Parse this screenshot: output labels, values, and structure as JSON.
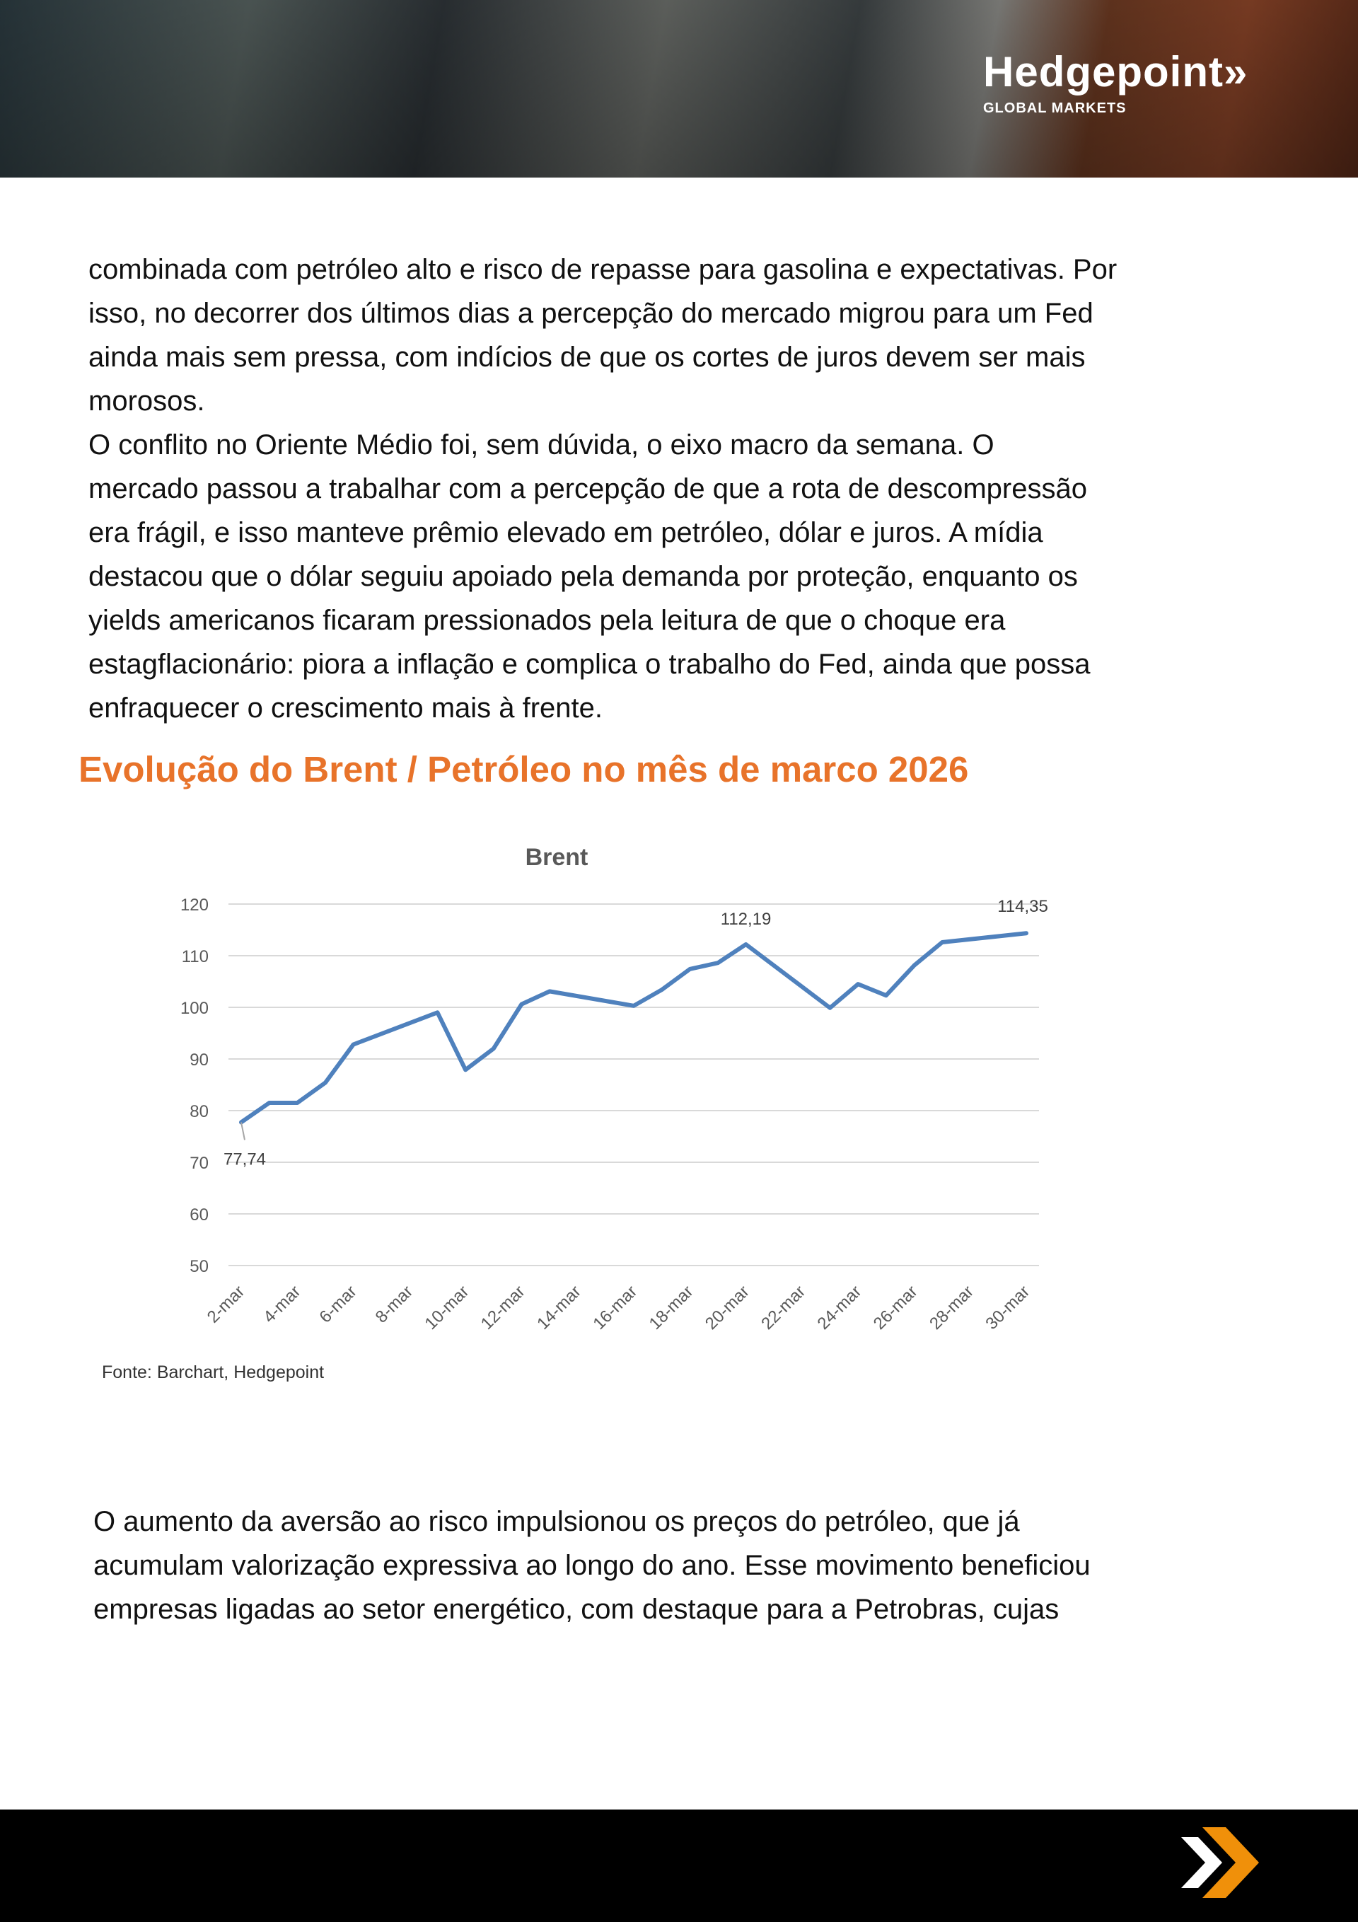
{
  "header": {
    "logo_name": "Hedgepoint»",
    "logo_sub": "GLOBAL MARKETS"
  },
  "paragraph1": [
    "combinada com petróleo alto e risco de repasse para gasolina e expectativas. Por",
    "isso, no decorrer dos últimos dias a percepção do mercado migrou para um Fed",
    "ainda mais sem pressa, com indícios de que os cortes de juros devem ser mais",
    "morosos.",
    "O conflito no Oriente Médio foi, sem dúvida, o eixo macro da semana. O",
    "mercado passou a trabalhar com a percepção de que a rota de descompressão",
    "era frágil, e isso manteve prêmio elevado em petróleo, dólar e juros. A mídia",
    "destacou que o dólar seguiu apoiado pela demanda por proteção, enquanto os",
    "yields americanos ficaram pressionados pela leitura de que o choque era",
    "estagflacionário: piora a inflação e complica o trabalho do Fed, ainda que possa",
    "enfraquecer o crescimento mais à frente."
  ],
  "section_title": "Evolução do Brent / Petróleo no mês de marco 2026",
  "chart_data": {
    "type": "line",
    "title": "Brent",
    "xlabel": "",
    "ylabel": "",
    "ylim": [
      50,
      120
    ],
    "yticks": [
      50,
      60,
      70,
      80,
      90,
      100,
      110,
      120
    ],
    "xlim_day": [
      2,
      30
    ],
    "xtick_labels": [
      "2-mar",
      "4-mar",
      "6-mar",
      "8-mar",
      "10-mar",
      "12-mar",
      "14-mar",
      "16-mar",
      "18-mar",
      "20-mar",
      "22-mar",
      "24-mar",
      "26-mar",
      "28-mar",
      "30-mar"
    ],
    "xtick_days": [
      2,
      4,
      6,
      8,
      10,
      12,
      14,
      16,
      18,
      20,
      22,
      24,
      26,
      28,
      30
    ],
    "grid": true,
    "series": [
      {
        "name": "Brent",
        "color": "#4f81bd",
        "x": [
          2,
          3,
          4,
          5,
          6,
          9,
          10,
          11,
          12,
          13,
          16,
          17,
          18,
          19,
          20,
          23,
          24,
          25,
          26,
          27,
          30
        ],
        "values": [
          77.74,
          81.5,
          81.5,
          85.4,
          92.8,
          99.0,
          87.9,
          92.0,
          100.6,
          103.1,
          100.3,
          103.4,
          107.4,
          108.6,
          112.19,
          99.9,
          104.5,
          102.3,
          108.1,
          112.6,
          114.35
        ]
      }
    ],
    "data_labels": [
      {
        "x": 2,
        "text": "77,74"
      },
      {
        "x": 20,
        "text": "112,19"
      },
      {
        "x": 30,
        "text": "114,35"
      }
    ]
  },
  "source": "Fonte: Barchart, Hedgepoint",
  "paragraph2": [
    "O aumento da aversão ao risco impulsionou os preços do petróleo, que já",
    "acumulam valorização expressiva ao longo do ano. Esse movimento beneficiou",
    "empresas ligadas ao setor energético, com destaque para a Petrobras, cujas"
  ],
  "colors": {
    "accent": "#e8732a",
    "line": "#4f81bd",
    "footer_arrow": "#f0900a"
  }
}
